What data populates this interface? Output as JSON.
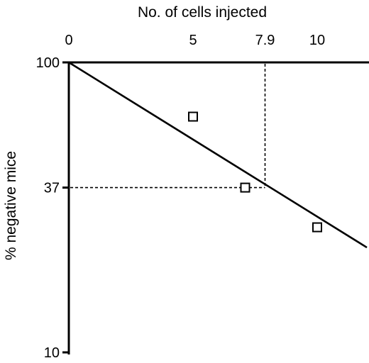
{
  "chart_data": {
    "type": "scatter",
    "title": "",
    "xlabel": "No. of cells injected",
    "ylabel": "% negative mice",
    "x_axis_position": "top",
    "y_scale": "log",
    "xlim": [
      0,
      12
    ],
    "ylim": [
      10,
      100
    ],
    "x_ticks": [
      {
        "value": 0,
        "label": "0"
      },
      {
        "value": 5,
        "label": "5"
      },
      {
        "value": 7.9,
        "label": "7.9"
      },
      {
        "value": 10,
        "label": "10"
      }
    ],
    "y_ticks": [
      {
        "value": 100,
        "label": "100"
      },
      {
        "value": 37,
        "label": "37"
      },
      {
        "value": 10,
        "label": "10"
      }
    ],
    "points": [
      {
        "x": 5,
        "y": 65
      },
      {
        "x": 7.1,
        "y": 37
      },
      {
        "x": 10,
        "y": 27
      }
    ],
    "fit_line": {
      "from": {
        "x": 0,
        "y": 100
      },
      "to": {
        "x": 12,
        "y": 23
      }
    },
    "reference": {
      "x": 7.9,
      "y": 37
    },
    "marker": "open-square",
    "grid": false,
    "colors": {
      "ink": "#000000",
      "background": "#ffffff"
    }
  }
}
